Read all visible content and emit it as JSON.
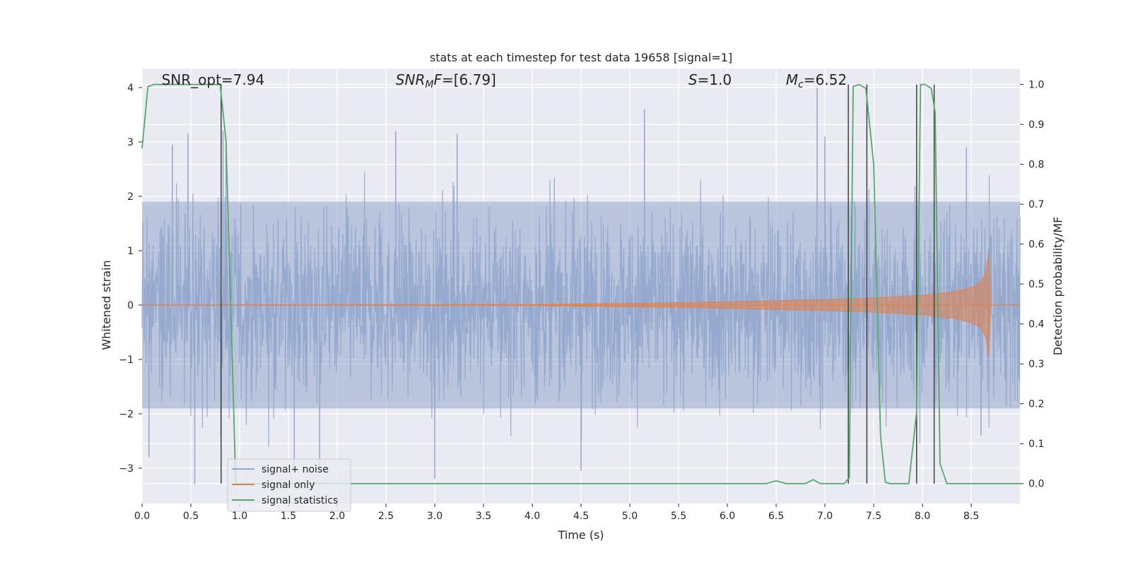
{
  "chart_data": {
    "type": "line",
    "title": "stats at each timestep for test data 19658 [signal=1]",
    "xlabel": "Time (s)",
    "ylabel": "Whitened strain",
    "ylabel_right": "Detection probability/MF",
    "xlim": [
      0,
      9.0
    ],
    "ylim": [
      -3.65,
      4.35
    ],
    "ylim_right": [
      -0.05,
      1.04
    ],
    "x_ticks": [
      0.0,
      0.5,
      1.0,
      1.5,
      2.0,
      2.5,
      3.0,
      3.5,
      4.0,
      4.5,
      5.0,
      5.5,
      6.0,
      6.5,
      7.0,
      7.5,
      8.0,
      8.5
    ],
    "x_tick_labels": [
      "0.0",
      "0.5",
      "1.0",
      "1.5",
      "2.0",
      "2.5",
      "3.0",
      "3.5",
      "4.0",
      "4.5",
      "5.0",
      "5.5",
      "6.0",
      "6.5",
      "7.0",
      "7.5",
      "8.0",
      "8.5"
    ],
    "y_ticks": [
      -3,
      -2,
      -1,
      0,
      1,
      2,
      3,
      4
    ],
    "y_tick_labels": [
      "−3",
      "−2",
      "−1",
      "0",
      "1",
      "2",
      "3",
      "4"
    ],
    "y_right_ticks": [
      0.0,
      0.1,
      0.2,
      0.3,
      0.4,
      0.5,
      0.6,
      0.7,
      0.8,
      0.9,
      1.0
    ],
    "y_right_tick_labels": [
      "0.0",
      "0.1",
      "0.2",
      "0.3",
      "0.4",
      "0.5",
      "0.6",
      "0.7",
      "0.8",
      "0.9",
      "1.0"
    ],
    "grid": true,
    "legend_position": "lower-left",
    "annotations": [
      {
        "text": "SNR_opt=7.94",
        "x": 0.2,
        "y": 4.05
      },
      {
        "text": "SNR_MF=[6.79]",
        "display": {
          "main": "SNR",
          "sub": "M",
          "rest": "F=[6.79]"
        },
        "x": 2.6,
        "y": 4.05
      },
      {
        "text": "S=1.0",
        "display": {
          "main": "S",
          "rest": "=1.0"
        },
        "x": 5.6,
        "y": 4.05
      },
      {
        "text": "M_c=6.52",
        "display": {
          "main": "M",
          "sub": "c",
          "rest": "=6.52"
        },
        "x": 6.6,
        "y": 4.05
      }
    ],
    "series": [
      {
        "name": "signal+ noise",
        "color": "#92a6cc",
        "description": "whitened noisy strain, amplitude mostly within ±2.5",
        "approx_range": [
          -3.3,
          3.6
        ],
        "bulk_range": [
          -1.9,
          1.9
        ],
        "spikes": [
          {
            "x": 0.07,
            "y": -2.8
          },
          {
            "x": 0.31,
            "y": 2.95
          },
          {
            "x": 0.47,
            "y": 3.15
          },
          {
            "x": 0.54,
            "y": -3.3
          },
          {
            "x": 0.83,
            "y": 3.2
          },
          {
            "x": 0.86,
            "y": 2.95
          },
          {
            "x": 1.56,
            "y": -3.0
          },
          {
            "x": 1.82,
            "y": -3.0
          },
          {
            "x": 2.6,
            "y": 3.2
          },
          {
            "x": 3.0,
            "y": -3.2
          },
          {
            "x": 3.23,
            "y": 3.15
          },
          {
            "x": 4.5,
            "y": -3.05
          },
          {
            "x": 5.15,
            "y": 3.6
          },
          {
            "x": 6.92,
            "y": 4.0
          },
          {
            "x": 7.0,
            "y": 3.1
          },
          {
            "x": 8.45,
            "y": 2.9
          },
          {
            "x": 8.6,
            "y": -2.4
          }
        ]
      },
      {
        "name": "signal only",
        "color": "#dd8452",
        "description": "chirp waveform with growing amplitude ending near t=8.68",
        "envelope": [
          {
            "x": 0.0,
            "amp": 0.0
          },
          {
            "x": 4.0,
            "amp": 0.01
          },
          {
            "x": 5.0,
            "amp": 0.03
          },
          {
            "x": 6.0,
            "amp": 0.06
          },
          {
            "x": 7.0,
            "amp": 0.1
          },
          {
            "x": 7.5,
            "amp": 0.13
          },
          {
            "x": 8.0,
            "amp": 0.18
          },
          {
            "x": 8.3,
            "amp": 0.24
          },
          {
            "x": 8.5,
            "amp": 0.32
          },
          {
            "x": 8.6,
            "amp": 0.42
          },
          {
            "x": 8.65,
            "amp": 0.6
          },
          {
            "x": 8.68,
            "amp": 0.95
          },
          {
            "x": 8.7,
            "amp": 0.0
          },
          {
            "x": 9.0,
            "amp": 0.0
          }
        ]
      },
      {
        "name": "signal statistics",
        "color": "#55a868",
        "axis": "right",
        "x": [
          0.0,
          0.06,
          0.12,
          0.2,
          0.5,
          0.8,
          0.86,
          0.92,
          0.96,
          1.0,
          6.4,
          6.5,
          6.6,
          6.8,
          6.88,
          6.95,
          7.2,
          7.25,
          7.29,
          7.35,
          7.42,
          7.5,
          7.57,
          7.62,
          7.67,
          7.72,
          7.86,
          7.94,
          7.98,
          8.03,
          8.09,
          8.13,
          8.18,
          8.25,
          8.3,
          9.0
        ],
        "y": [
          0.84,
          0.995,
          1.0,
          1.0,
          1.0,
          1.0,
          0.86,
          0.35,
          0.0,
          0.0,
          0.0,
          0.007,
          0.0,
          0.0,
          0.01,
          0.0,
          0.0,
          0.015,
          0.995,
          1.0,
          0.99,
          0.8,
          0.12,
          0.003,
          0.0,
          0.0,
          0.0,
          0.18,
          1.0,
          1.0,
          0.99,
          0.93,
          0.05,
          0.0,
          0.0,
          0.0
        ]
      }
    ],
    "vertical_lines": [
      {
        "x": 0.81,
        "color": "#3f3f3f"
      },
      {
        "x": 7.24,
        "color": "#3f3f3f"
      },
      {
        "x": 7.43,
        "color": "#3f3f3f"
      },
      {
        "x": 7.94,
        "color": "#3f3f3f"
      },
      {
        "x": 8.12,
        "color": "#3f3f3f"
      }
    ],
    "colors": {
      "background": "#eaeaf2",
      "grid": "#ffffff"
    }
  }
}
